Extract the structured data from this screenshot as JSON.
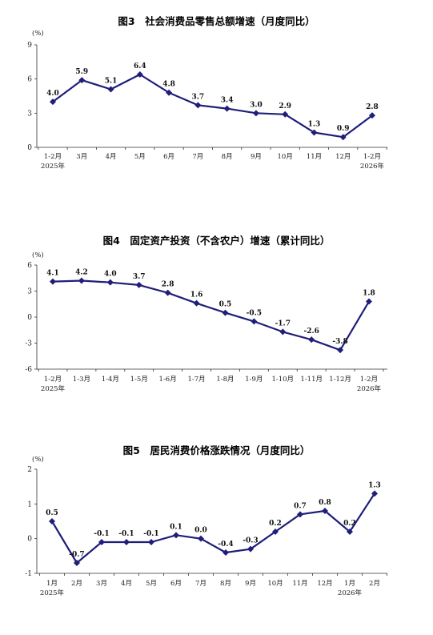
{
  "chart_data": [
    {
      "type": "line",
      "title": "图3　社会消费品零售总额增速（月度同比）",
      "unit": "(%)",
      "categories": [
        "1-2月",
        "3月",
        "4月",
        "5月",
        "6月",
        "7月",
        "8月",
        "9月",
        "10月",
        "11月",
        "12月",
        "1-2月"
      ],
      "year_labels": [
        "2025年",
        "",
        "",
        "",
        "",
        "",
        "",
        "",
        "",
        "",
        "",
        "2026年"
      ],
      "series": [
        {
          "values": [
            4.0,
            5.9,
            5.1,
            6.4,
            4.8,
            3.7,
            3.4,
            3.0,
            2.9,
            1.3,
            0.9,
            2.8
          ]
        }
      ],
      "value_labels": [
        "4.0",
        "5.9",
        "5.1",
        "6.4",
        "4.8",
        "3.7",
        "3.4",
        "3.0",
        "2.9",
        "1.3",
        "0.9",
        "2.8"
      ],
      "ylim": [
        0,
        9
      ],
      "yticks": [
        "0",
        "3",
        "6",
        "9"
      ],
      "color": "#1f1f7a"
    },
    {
      "type": "line",
      "title": "图4　固定资产投资（不含农户）增速（累计同比）",
      "unit": "(%)",
      "categories": [
        "1-2月",
        "1-3月",
        "1-4月",
        "1-5月",
        "1-6月",
        "1-7月",
        "1-8月",
        "1-9月",
        "1-10月",
        "1-11月",
        "1-12月",
        "1-2月"
      ],
      "year_labels": [
        "2025年",
        "",
        "",
        "",
        "",
        "",
        "",
        "",
        "",
        "",
        "",
        "2026年"
      ],
      "series": [
        {
          "values": [
            4.1,
            4.2,
            4.0,
            3.7,
            2.8,
            1.6,
            0.5,
            -0.5,
            -1.7,
            -2.6,
            -3.8,
            1.8
          ]
        }
      ],
      "value_labels": [
        "4.1",
        "4.2",
        "4.0",
        "3.7",
        "2.8",
        "1.6",
        "0.5",
        "-0.5",
        "-1.7",
        "-2.6",
        "-3.8",
        "1.8"
      ],
      "ylim": [
        -6,
        6
      ],
      "yticks": [
        "-6",
        "-3",
        "0",
        "3",
        "6"
      ],
      "color": "#1f1f7a"
    },
    {
      "type": "line",
      "title": "图5　居民消费价格涨跌情况（月度同比）",
      "unit": "(%)",
      "categories": [
        "1月",
        "2月",
        "3月",
        "4月",
        "5月",
        "6月",
        "7月",
        "8月",
        "9月",
        "10月",
        "11月",
        "12月",
        "1月",
        "2月"
      ],
      "year_labels": [
        "2025年",
        "",
        "",
        "",
        "",
        "",
        "",
        "",
        "",
        "",
        "",
        "",
        "2026年",
        ""
      ],
      "series": [
        {
          "values": [
            0.5,
            -0.7,
            -0.1,
            -0.1,
            -0.1,
            0.1,
            0.0,
            -0.4,
            -0.3,
            0.2,
            0.7,
            0.8,
            0.2,
            1.3
          ]
        }
      ],
      "value_labels": [
        "0.5",
        "-0.7",
        "-0.1",
        "-0.1",
        "-0.1",
        "0.1",
        "0.0",
        "-0.4",
        "-0.3",
        "0.2",
        "0.7",
        "0.8",
        "0.2",
        "1.3"
      ],
      "ylim": [
        -1,
        2
      ],
      "yticks": [
        "-1",
        "0",
        "1",
        "2"
      ],
      "color": "#1f1f7a"
    }
  ]
}
